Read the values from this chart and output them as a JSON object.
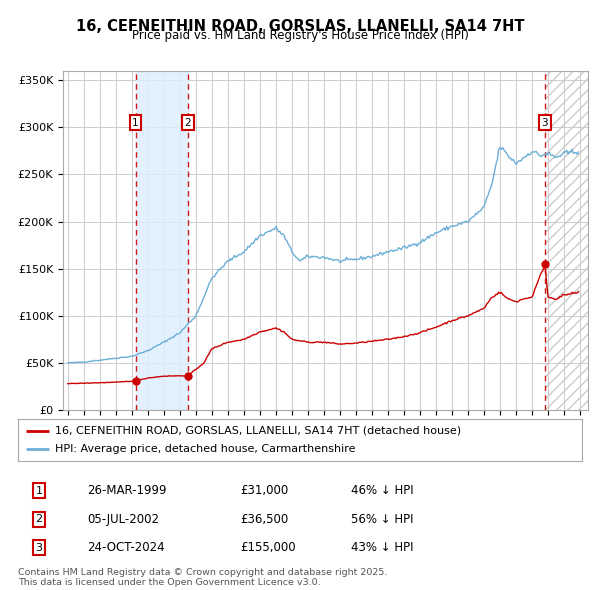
{
  "title": "16, CEFNEITHIN ROAD, GORSLAS, LLANELLI, SA14 7HT",
  "subtitle": "Price paid vs. HM Land Registry's House Price Index (HPI)",
  "background_color": "#ffffff",
  "plot_bg_color": "#ffffff",
  "grid_color": "#cccccc",
  "ylim": [
    0,
    360000
  ],
  "yticks": [
    0,
    50000,
    100000,
    150000,
    200000,
    250000,
    300000,
    350000
  ],
  "ytick_labels": [
    "£0",
    "£50K",
    "£100K",
    "£150K",
    "£200K",
    "£250K",
    "£300K",
    "£350K"
  ],
  "xlim_start": 1994.7,
  "xlim_end": 2027.5,
  "sale_dates": [
    1999.23,
    2002.51,
    2024.81
  ],
  "sale_prices": [
    31000,
    36500,
    155000
  ],
  "sale_labels": [
    "1",
    "2",
    "3"
  ],
  "hpi_color": "#6baed6",
  "price_color": "#cc0000",
  "sale_marker_color": "#cc0000",
  "vline_color": "#cc0000",
  "highlight_color": "#ddeeff",
  "legend_label_price": "16, CEFNEITHIN ROAD, GORSLAS, LLANELLI, SA14 7HT (detached house)",
  "legend_label_hpi": "HPI: Average price, detached house, Carmarthenshire",
  "table_data": [
    {
      "label": "1",
      "date": "26-MAR-1999",
      "price": "£31,000",
      "hpi": "46% ↓ HPI"
    },
    {
      "label": "2",
      "date": "05-JUL-2002",
      "price": "£36,500",
      "hpi": "56% ↓ HPI"
    },
    {
      "label": "3",
      "date": "24-OCT-2024",
      "price": "£155,000",
      "hpi": "43% ↓ HPI"
    }
  ],
  "footnote": "Contains HM Land Registry data © Crown copyright and database right 2025.\nThis data is licensed under the Open Government Licence v3.0.",
  "future_start": 2024.81,
  "hpi_keypoints": [
    [
      1995.0,
      50000
    ],
    [
      1996.0,
      51000
    ],
    [
      1997.0,
      53000
    ],
    [
      1998.0,
      55000
    ],
    [
      1999.0,
      57000
    ],
    [
      2000.0,
      63000
    ],
    [
      2001.0,
      72000
    ],
    [
      2002.0,
      82000
    ],
    [
      2003.0,
      100000
    ],
    [
      2004.0,
      140000
    ],
    [
      2005.0,
      158000
    ],
    [
      2006.0,
      168000
    ],
    [
      2007.0,
      185000
    ],
    [
      2008.0,
      193000
    ],
    [
      2008.5,
      185000
    ],
    [
      2009.0,
      168000
    ],
    [
      2009.5,
      158000
    ],
    [
      2010.0,
      163000
    ],
    [
      2011.0,
      162000
    ],
    [
      2012.0,
      158000
    ],
    [
      2013.0,
      160000
    ],
    [
      2014.0,
      163000
    ],
    [
      2015.0,
      168000
    ],
    [
      2016.0,
      172000
    ],
    [
      2017.0,
      178000
    ],
    [
      2018.0,
      188000
    ],
    [
      2019.0,
      195000
    ],
    [
      2020.0,
      200000
    ],
    [
      2021.0,
      215000
    ],
    [
      2021.5,
      240000
    ],
    [
      2022.0,
      280000
    ],
    [
      2022.5,
      270000
    ],
    [
      2023.0,
      262000
    ],
    [
      2023.5,
      268000
    ],
    [
      2024.0,
      275000
    ],
    [
      2024.5,
      270000
    ],
    [
      2025.0,
      272000
    ],
    [
      2025.5,
      268000
    ],
    [
      2026.0,
      272000
    ],
    [
      2027.0,
      275000
    ]
  ],
  "price_keypoints": [
    [
      1995.0,
      28000
    ],
    [
      1996.0,
      28500
    ],
    [
      1997.0,
      29000
    ],
    [
      1998.0,
      29500
    ],
    [
      1999.23,
      31000
    ],
    [
      2000.0,
      34000
    ],
    [
      2001.0,
      36000
    ],
    [
      2002.51,
      36500
    ],
    [
      2003.5,
      50000
    ],
    [
      2004.0,
      65000
    ],
    [
      2005.0,
      72000
    ],
    [
      2006.0,
      75000
    ],
    [
      2007.0,
      83000
    ],
    [
      2008.0,
      87000
    ],
    [
      2008.5,
      83000
    ],
    [
      2009.0,
      75000
    ],
    [
      2010.0,
      72000
    ],
    [
      2011.0,
      72000
    ],
    [
      2012.0,
      70000
    ],
    [
      2013.0,
      71000
    ],
    [
      2014.0,
      73000
    ],
    [
      2015.0,
      75000
    ],
    [
      2016.0,
      78000
    ],
    [
      2017.0,
      82000
    ],
    [
      2018.0,
      88000
    ],
    [
      2019.0,
      95000
    ],
    [
      2020.0,
      100000
    ],
    [
      2021.0,
      108000
    ],
    [
      2021.5,
      120000
    ],
    [
      2022.0,
      125000
    ],
    [
      2022.5,
      118000
    ],
    [
      2023.0,
      115000
    ],
    [
      2023.5,
      118000
    ],
    [
      2024.0,
      120000
    ],
    [
      2024.81,
      155000
    ],
    [
      2025.0,
      120000
    ],
    [
      2025.5,
      118000
    ],
    [
      2026.0,
      122000
    ],
    [
      2027.0,
      125000
    ]
  ]
}
